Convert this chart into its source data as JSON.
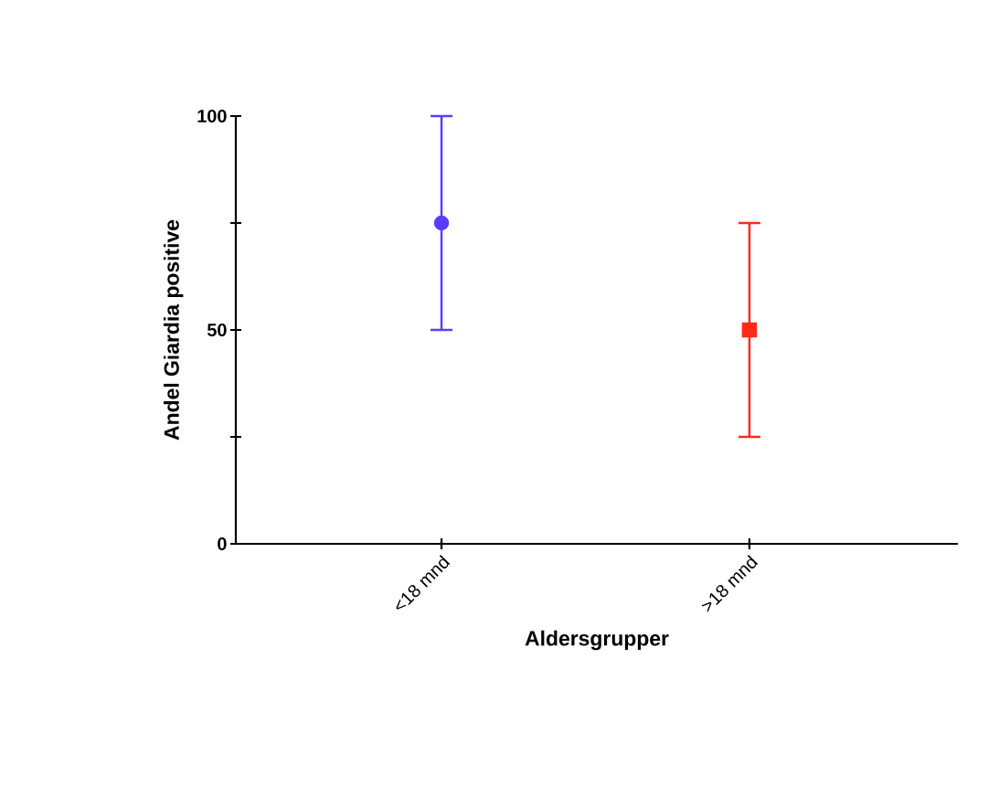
{
  "chart_data": {
    "type": "scatter",
    "xlabel": "Aldersgrupper",
    "ylabel": "Andel Giardia positive",
    "categories": [
      "<18 mnd",
      ">18 mnd"
    ],
    "series": [
      {
        "color": "#5b3cff",
        "marker": "circle",
        "values": [
          75,
          null
        ],
        "errors": [
          25,
          null
        ]
      },
      {
        "color": "#ff2a1a",
        "marker": "square",
        "values": [
          null,
          50
        ],
        "errors": [
          null,
          25
        ]
      }
    ],
    "ylim": [
      0,
      100
    ],
    "yticks": [
      0,
      {
        "value": 25,
        "label": null
      },
      50,
      {
        "value": 75,
        "label": null
      },
      100
    ]
  }
}
